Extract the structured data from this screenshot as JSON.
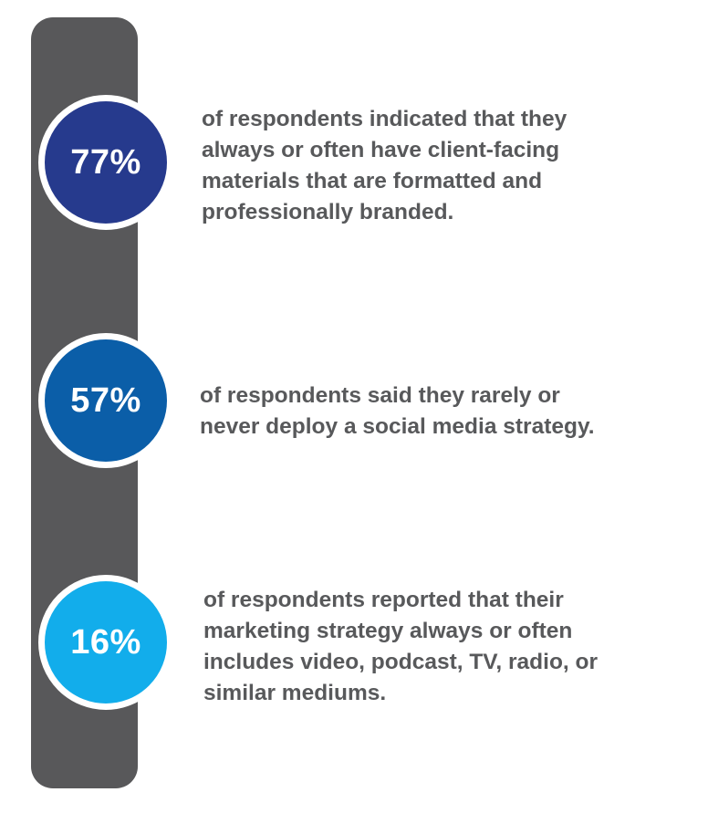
{
  "stats": [
    {
      "value": "77%",
      "color": "#263a8d",
      "lines": [
        "of respondents indicated that they",
        "always or often have client-facing",
        "materials that are formatted and",
        "professionally branded."
      ]
    },
    {
      "value": "57%",
      "color": "#0b5ea8",
      "lines": [
        "of respondents said they rarely or",
        "never deploy a social media strategy."
      ]
    },
    {
      "value": "16%",
      "color": "#12adeb",
      "lines": [
        "of respondents reported that their",
        "marketing strategy always or often",
        "includes video, podcast, TV, radio, or",
        "similar mediums."
      ]
    }
  ]
}
